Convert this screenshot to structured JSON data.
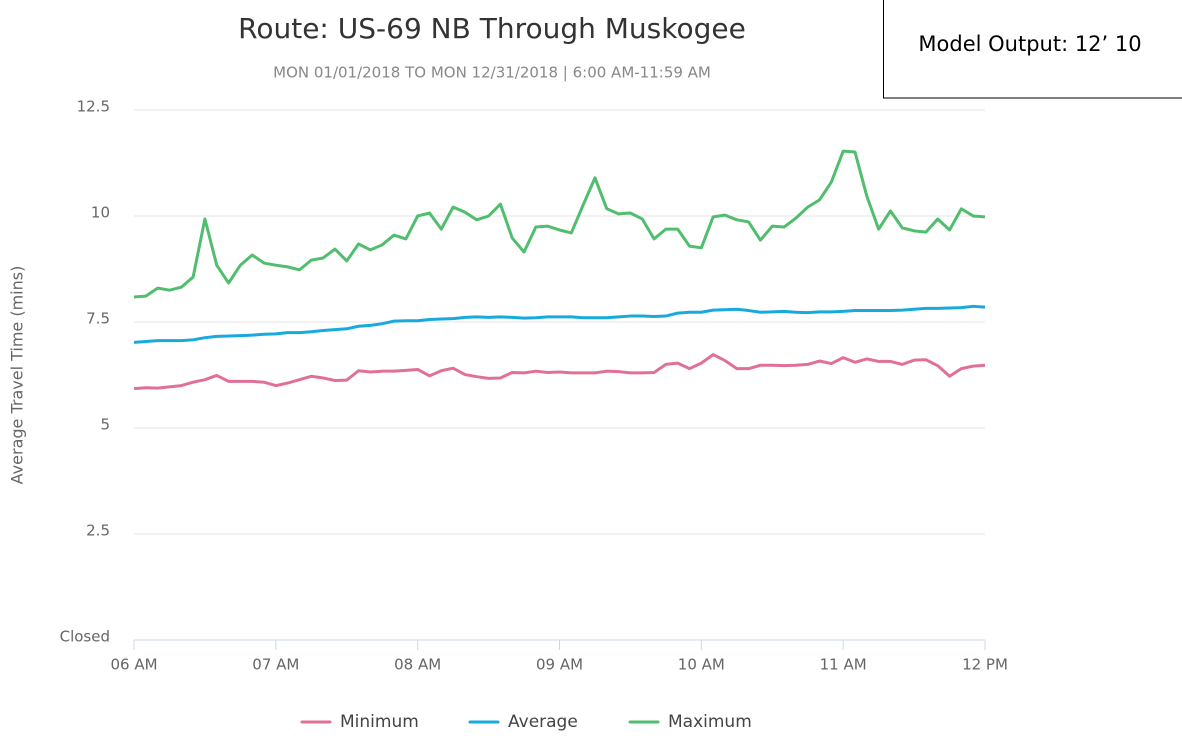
{
  "chart_data": {
    "type": "line",
    "title": "Route: US-69 NB Through Muskogee",
    "subtitle": "MON 01/01/2018 TO MON 12/31/2018 | 6:00 AM-11:59 AM",
    "annotation": "Model Output: 12’ 10",
    "y_label": "Average Travel Time (mins)",
    "xlim": [
      360,
      720
    ],
    "xticks": [
      {
        "value": 360,
        "label": "06 AM"
      },
      {
        "value": 420,
        "label": "07 AM"
      },
      {
        "value": 480,
        "label": "08 AM"
      },
      {
        "value": 540,
        "label": "09 AM"
      },
      {
        "value": 600,
        "label": "10 AM"
      },
      {
        "value": 660,
        "label": "11 AM"
      },
      {
        "value": 720,
        "label": "12 PM"
      }
    ],
    "ylim": [
      0,
      12.5
    ],
    "yticks": [
      {
        "value": 0,
        "label": "Closed"
      },
      2.5,
      5,
      7.5,
      10,
      12.5
    ],
    "grid": true,
    "legend": "bottom",
    "x": [
      360,
      365,
      370,
      375,
      380,
      385,
      390,
      395,
      400,
      405,
      410,
      415,
      420,
      425,
      430,
      435,
      440,
      445,
      450,
      455,
      460,
      465,
      470,
      475,
      480,
      485,
      490,
      495,
      500,
      505,
      510,
      515,
      520,
      525,
      530,
      535,
      540,
      545,
      550,
      555,
      560,
      565,
      570,
      575,
      580,
      585,
      590,
      595,
      600,
      605,
      610,
      615,
      620,
      625,
      630,
      635,
      640,
      645,
      650,
      655,
      660,
      665,
      670,
      675,
      680,
      685,
      690,
      695,
      700,
      705,
      710,
      715,
      720
    ],
    "series": [
      {
        "name": "Minimum",
        "color": "#e0709a",
        "values": [
          5.93,
          5.95,
          5.94,
          5.97,
          6.0,
          6.08,
          6.14,
          6.24,
          6.1,
          6.1,
          6.1,
          6.08,
          6.0,
          6.06,
          6.14,
          6.22,
          6.18,
          6.12,
          6.13,
          6.35,
          6.32,
          6.34,
          6.34,
          6.36,
          6.38,
          6.23,
          6.35,
          6.41,
          6.26,
          6.21,
          6.17,
          6.18,
          6.31,
          6.3,
          6.34,
          6.31,
          6.32,
          6.3,
          6.3,
          6.3,
          6.34,
          6.33,
          6.3,
          6.3,
          6.31,
          6.5,
          6.53,
          6.4,
          6.53,
          6.73,
          6.59,
          6.4,
          6.4,
          6.48,
          6.48,
          6.47,
          6.48,
          6.5,
          6.58,
          6.52,
          6.66,
          6.55,
          6.63,
          6.57,
          6.57,
          6.5,
          6.6,
          6.61,
          6.47,
          6.22,
          6.4,
          6.46,
          6.48
        ]
      },
      {
        "name": "Average",
        "color": "#19aadd",
        "values": [
          7.02,
          7.04,
          7.06,
          7.06,
          7.06,
          7.08,
          7.13,
          7.16,
          7.17,
          7.18,
          7.19,
          7.21,
          7.22,
          7.25,
          7.25,
          7.27,
          7.3,
          7.32,
          7.34,
          7.4,
          7.42,
          7.46,
          7.52,
          7.53,
          7.53,
          7.56,
          7.57,
          7.58,
          7.61,
          7.62,
          7.61,
          7.62,
          7.61,
          7.59,
          7.6,
          7.62,
          7.62,
          7.62,
          7.6,
          7.6,
          7.6,
          7.62,
          7.64,
          7.64,
          7.63,
          7.64,
          7.71,
          7.73,
          7.73,
          7.78,
          7.79,
          7.8,
          7.77,
          7.73,
          7.74,
          7.75,
          7.73,
          7.72,
          7.74,
          7.74,
          7.75,
          7.77,
          7.77,
          7.77,
          7.77,
          7.78,
          7.8,
          7.82,
          7.82,
          7.83,
          7.84,
          7.87,
          7.85
        ]
      },
      {
        "name": "Maximum",
        "color": "#50be6e",
        "values": [
          8.09,
          8.11,
          8.3,
          8.25,
          8.32,
          8.56,
          9.93,
          8.84,
          8.42,
          8.84,
          9.08,
          8.89,
          8.84,
          8.8,
          8.73,
          8.96,
          9.01,
          9.22,
          8.94,
          9.34,
          9.2,
          9.32,
          9.55,
          9.46,
          10.0,
          10.07,
          9.69,
          10.21,
          10.09,
          9.91,
          10.0,
          10.28,
          9.48,
          9.15,
          9.74,
          9.76,
          9.67,
          9.6,
          10.26,
          10.9,
          10.17,
          10.05,
          10.07,
          9.93,
          9.46,
          9.69,
          9.69,
          9.29,
          9.25,
          9.98,
          10.02,
          9.91,
          9.86,
          9.43,
          9.76,
          9.74,
          9.95,
          10.21,
          10.38,
          10.8,
          11.53,
          11.51,
          10.47,
          9.69,
          10.12,
          9.72,
          9.65,
          9.62,
          9.93,
          9.67,
          10.17,
          10.0,
          9.98
        ]
      }
    ]
  }
}
